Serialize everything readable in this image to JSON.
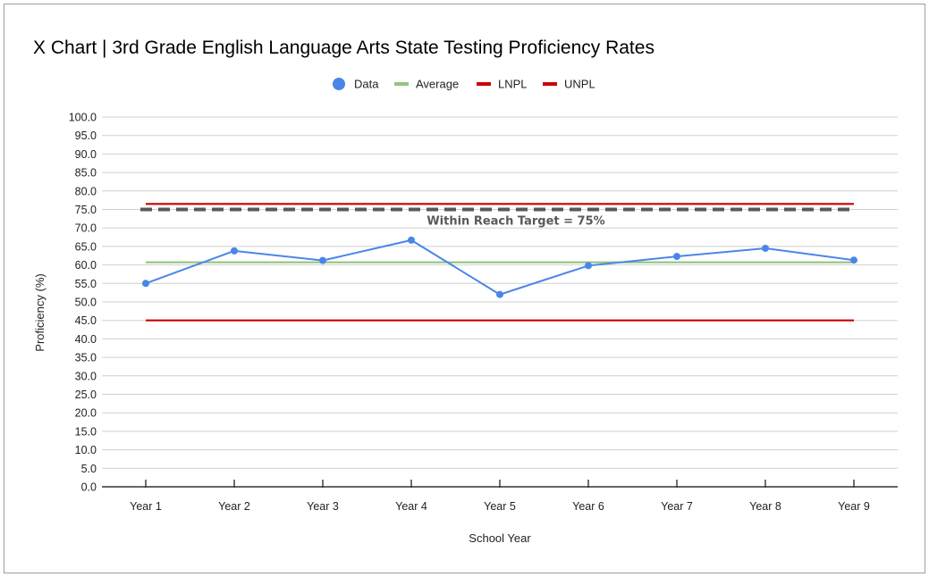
{
  "chart_data": {
    "type": "line",
    "title": "X Chart | 3rd Grade English Language Arts State Testing Proficiency Rates",
    "xlabel": "School Year",
    "ylabel": "Proficiency (%)",
    "ylim": [
      0,
      100
    ],
    "y_ticks": [
      "0.0",
      "5.0",
      "10.0",
      "15.0",
      "20.0",
      "25.0",
      "30.0",
      "35.0",
      "40.0",
      "45.0",
      "50.0",
      "55.0",
      "60.0",
      "65.0",
      "70.0",
      "75.0",
      "80.0",
      "85.0",
      "90.0",
      "95.0",
      "100.0"
    ],
    "categories": [
      "Year 1",
      "Year 2",
      "Year 3",
      "Year 4",
      "Year 5",
      "Year 6",
      "Year 7",
      "Year 8",
      "Year 9"
    ],
    "grid": true,
    "legend_position": "top-center",
    "series": [
      {
        "name": "Data",
        "color": "#4a86e8",
        "style": "line-markers",
        "values": [
          55.0,
          63.8,
          61.2,
          66.7,
          52.0,
          59.8,
          62.3,
          64.5,
          61.3
        ]
      },
      {
        "name": "Average",
        "color": "#93c47d",
        "style": "line",
        "values": [
          60.7,
          60.7,
          60.7,
          60.7,
          60.7,
          60.7,
          60.7,
          60.7,
          60.7
        ]
      },
      {
        "name": "LNPL",
        "color": "#cc0000",
        "style": "line",
        "values": [
          45.0,
          45.0,
          45.0,
          45.0,
          45.0,
          45.0,
          45.0,
          45.0,
          45.0
        ]
      },
      {
        "name": "UNPL",
        "color": "#cc0000",
        "style": "line",
        "values": [
          76.5,
          76.5,
          76.5,
          76.5,
          76.5,
          76.5,
          76.5,
          76.5,
          76.5
        ]
      }
    ],
    "target": {
      "value": 75,
      "color": "#595959",
      "style": "dashed",
      "label": "Within Reach Target = 75%"
    }
  }
}
